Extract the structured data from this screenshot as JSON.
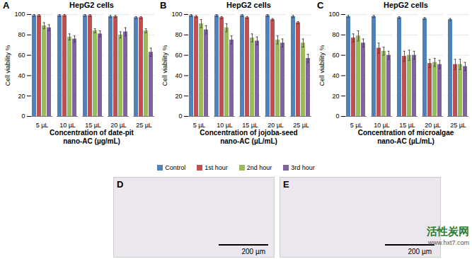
{
  "chart_data": [
    {
      "type": "bar",
      "panel": "A",
      "title": "HepG2 cells",
      "x_label": "Concentration of date-pit\nnano-AC (µg/mL)",
      "y_label": "Cell viability %",
      "categories": [
        "5 µL",
        "10 µL",
        "15 µL",
        "20 µL",
        "25 µL"
      ],
      "ylim": [
        0,
        100
      ],
      "yticks": [
        0,
        20,
        40,
        60,
        80,
        100
      ],
      "grid": true,
      "legend": "bottom",
      "series": [
        {
          "name": "Control",
          "color": "#4f81bd",
          "values": [
            99,
            99,
            99,
            98,
            97
          ],
          "errors": [
            1,
            1,
            1,
            1,
            1
          ]
        },
        {
          "name": "1st hour",
          "color": "#c0504d",
          "values": [
            99,
            99,
            99,
            98,
            97
          ],
          "errors": [
            1,
            1,
            1,
            1,
            1
          ]
        },
        {
          "name": "2nd hour",
          "color": "#9bbb59",
          "values": [
            89,
            78,
            84,
            80,
            84
          ],
          "errors": [
            3,
            3,
            2,
            3,
            2
          ]
        },
        {
          "name": "3rd hour",
          "color": "#8064a2",
          "values": [
            87,
            76,
            81,
            83,
            63
          ],
          "errors": [
            3,
            3,
            3,
            4,
            4
          ]
        }
      ]
    },
    {
      "type": "bar",
      "panel": "B",
      "title": "HepG2 cells",
      "x_label": "Concentration of jojoba-seed\nnano-AC (µL/mL)",
      "y_label": "Cell viability %",
      "categories": [
        "5 µL",
        "10 µL",
        "15 µL",
        "20 µL",
        "25 µL"
      ],
      "ylim": [
        0,
        100
      ],
      "yticks": [
        0,
        20,
        40,
        60,
        80,
        100
      ],
      "grid": true,
      "legend": "bottom",
      "series": [
        {
          "name": "Control",
          "color": "#4f81bd",
          "values": [
            99,
            99,
            99,
            99,
            98
          ],
          "errors": [
            1,
            1,
            1,
            1,
            1
          ]
        },
        {
          "name": "1st hour",
          "color": "#c0504d",
          "values": [
            98,
            97,
            97,
            95,
            92
          ],
          "errors": [
            1,
            1,
            1,
            1,
            1
          ]
        },
        {
          "name": "2nd hour",
          "color": "#9bbb59",
          "values": [
            91,
            87,
            77,
            75,
            72
          ],
          "errors": [
            4,
            4,
            4,
            4,
            4
          ]
        },
        {
          "name": "3rd hour",
          "color": "#8064a2",
          "values": [
            85,
            75,
            74,
            72,
            57
          ],
          "errors": [
            4,
            4,
            4,
            4,
            4
          ]
        }
      ]
    },
    {
      "type": "bar",
      "panel": "C",
      "title": "HepG2 cells",
      "x_label": "Concentration of microalgae\nnano-AC (µL/mL)",
      "y_label": "Cell viability %",
      "categories": [
        "5 µL",
        "10 µL",
        "15 µL",
        "20 µL",
        "25 µL"
      ],
      "ylim": [
        0,
        100
      ],
      "yticks": [
        0,
        20,
        40,
        60,
        80,
        100
      ],
      "grid": true,
      "legend": "bottom",
      "series": [
        {
          "name": "Control",
          "color": "#4f81bd",
          "values": [
            98,
            98,
            97,
            96,
            95
          ],
          "errors": [
            1,
            1,
            1,
            1,
            1
          ]
        },
        {
          "name": "1st hour",
          "color": "#c0504d",
          "values": [
            77,
            67,
            59,
            52,
            51
          ],
          "errors": [
            4,
            5,
            5,
            4,
            5
          ]
        },
        {
          "name": "2nd hour",
          "color": "#9bbb59",
          "values": [
            79,
            64,
            60,
            53,
            51
          ],
          "errors": [
            5,
            4,
            5,
            4,
            5
          ]
        },
        {
          "name": "3rd hour",
          "color": "#8064a2",
          "values": [
            72,
            60,
            60,
            51,
            49
          ],
          "errors": [
            4,
            4,
            4,
            4,
            4
          ]
        }
      ]
    }
  ],
  "images": [
    {
      "panel": "D",
      "scale_bar": "200 µm"
    },
    {
      "panel": "E",
      "scale_bar": "200 µm"
    }
  ],
  "watermark": [
    "活性炭网",
    "www.hxt7.com"
  ]
}
